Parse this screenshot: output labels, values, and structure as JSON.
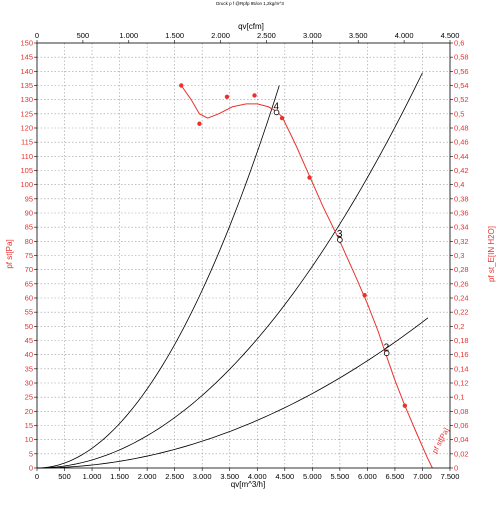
{
  "chart_data": {
    "type": "line",
    "title": "Druck p f @Rpfp 95/on 1,2kg/m^3",
    "xlabel": "qv[m^3/h]",
    "x2label": "qv[cfm]",
    "ylabel": "pf st[Pa]",
    "y2label": "pf st_E[IN H2O]",
    "xlim": [
      0,
      7500
    ],
    "ylim": [
      0,
      150
    ],
    "x2lim": [
      0,
      4500
    ],
    "y2lim": [
      0,
      0.6
    ],
    "x_ticks": [
      0,
      500,
      1000,
      1500,
      2000,
      2500,
      3000,
      3500,
      4000,
      4500,
      5000,
      5500,
      6000,
      6500,
      7000,
      7500
    ],
    "x_tick_labels": [
      "0",
      "500",
      "1.000",
      "1.500",
      "2.000",
      "2.500",
      "3.000",
      "3.500",
      "4.000",
      "4.500",
      "5.000",
      "5.500",
      "6.000",
      "6.500",
      "7.000",
      "7.500"
    ],
    "y_ticks": [
      0,
      5,
      10,
      15,
      20,
      25,
      30,
      35,
      40,
      45,
      50,
      55,
      60,
      65,
      70,
      75,
      80,
      85,
      90,
      95,
      100,
      105,
      110,
      115,
      120,
      125,
      130,
      135,
      140,
      145,
      150
    ],
    "x2_ticks": [
      0,
      500,
      1000,
      1500,
      2000,
      2500,
      3000,
      3500,
      4000,
      4500
    ],
    "x2_tick_labels": [
      "0",
      "500",
      "1.000",
      "1.500",
      "2.000",
      "2.500",
      "3.000",
      "3.500",
      "4.000",
      "4.500"
    ],
    "y2_ticks": [
      0,
      0.02,
      0.04,
      0.06,
      0.08,
      0.1,
      0.12,
      0.14,
      0.16,
      0.18,
      0.2,
      0.22,
      0.24,
      0.26,
      0.28,
      0.3,
      0.32,
      0.34,
      0.36,
      0.38,
      0.4,
      0.42,
      0.44,
      0.46,
      0.48,
      0.5,
      0.52,
      0.54,
      0.56,
      0.58,
      0.6
    ],
    "y2_tick_labels": [
      "0",
      "0,02",
      "0,04",
      "0,06",
      "0,08",
      "0,1",
      "0,12",
      "0,14",
      "0,16",
      "0,18",
      "0,2",
      "0,22",
      "0,24",
      "0,26",
      "0,28",
      "0,3",
      "0,32",
      "0,34",
      "0,36",
      "0,38",
      "0,4",
      "0,42",
      "0,44",
      "0,46",
      "0,48",
      "0,5",
      "0,52",
      "0,54",
      "0,56",
      "0,58",
      "0,6"
    ],
    "grid": true,
    "fan_curve": {
      "name": "pf st[Pa]",
      "color": "#e8322e",
      "x": [
        2620,
        2800,
        2950,
        3100,
        3300,
        3550,
        3800,
        4000,
        4200,
        4340,
        4450,
        4700,
        4950,
        5200,
        5500,
        5800,
        6000,
        6200,
        6320,
        6500,
        6680,
        6900,
        7080,
        7180
      ],
      "y": [
        135,
        130,
        125,
        123.5,
        125,
        127.5,
        128.5,
        128.5,
        127.5,
        126,
        124,
        114,
        103,
        92,
        80,
        67,
        58,
        48,
        41,
        31,
        22,
        12,
        4,
        0
      ]
    },
    "fan_points": {
      "x": [
        2620,
        2950,
        3450,
        3950,
        4450,
        4950,
        5500,
        5950,
        6680
      ],
      "y": [
        135,
        121.5,
        131,
        131.5,
        123.5,
        102.5,
        81,
        61,
        22
      ]
    },
    "system_curves": [
      {
        "x_end": 4400,
        "y_end": 135
      },
      {
        "x_end": 7000,
        "y_end": 139.5
      },
      {
        "x_end": 7100,
        "y_end": 53
      }
    ],
    "operating_points": [
      {
        "label": "2",
        "x": 6350,
        "y": 40.5
      },
      {
        "label": "3",
        "x": 5500,
        "y": 80.5
      },
      {
        "label": "4",
        "x": 4350,
        "y": 125.5
      }
    ],
    "curve_label": "pf st[Pa]",
    "curve_label_position": {
      "x": 7250,
      "y": 5
    }
  }
}
